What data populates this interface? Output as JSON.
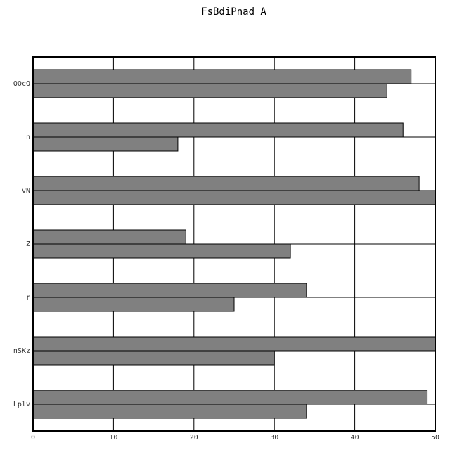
{
  "chart_data": {
    "type": "bar",
    "orientation": "horizontal",
    "title": "FsBdiPnad A",
    "xlabel": "",
    "ylabel": "",
    "categories": [
      "QOcQ",
      "n",
      "vN",
      "Z",
      "r",
      "nSKz",
      "Lplv"
    ],
    "series": [
      {
        "values": [
          47,
          46,
          48,
          19,
          34,
          50,
          49
        ]
      },
      {
        "values": [
          44,
          18,
          50,
          32,
          25,
          30,
          34
        ]
      }
    ],
    "xlim": [
      0,
      50
    ],
    "xticks": [
      "0",
      "10",
      "20",
      "30",
      "40",
      "50"
    ],
    "grid": true,
    "bar_color": "#808080"
  }
}
